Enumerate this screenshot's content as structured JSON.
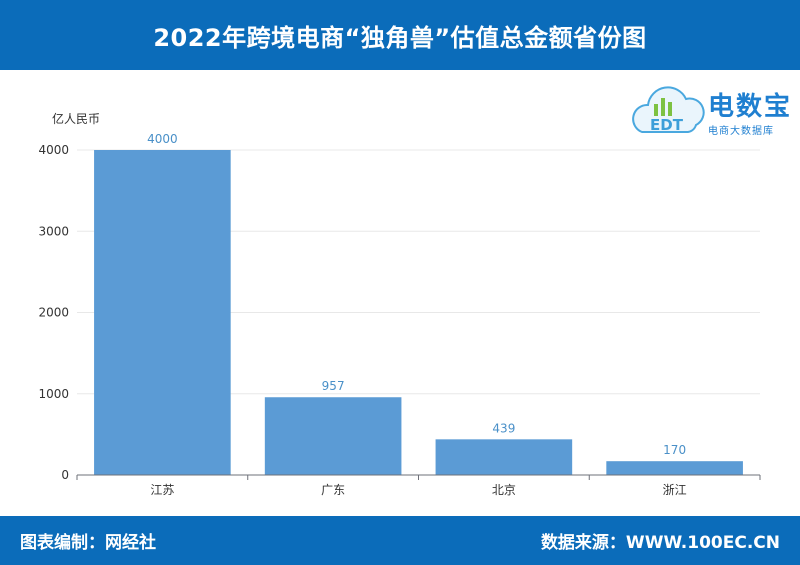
{
  "header": {
    "title": "2022年跨境电商“独角兽”估值总金额省份图"
  },
  "footer": {
    "left": "图表编制：网经社",
    "right": "数据来源：WWW.100EC.CN"
  },
  "logo": {
    "brand": "电数宝",
    "sub": "电商大数据库",
    "mark": "EDT",
    "accent": "#1f7fd0"
  },
  "chart_data": {
    "type": "bar",
    "title": "2022年跨境电商“独角兽”估值总金额省份图",
    "ylabel": "亿人民币",
    "xlabel": "",
    "categories": [
      "江苏",
      "广东",
      "北京",
      "浙江"
    ],
    "values": [
      4000,
      957,
      439,
      170
    ],
    "ylim": [
      0,
      4000
    ],
    "yticks": [
      0,
      1000,
      2000,
      3000,
      4000
    ],
    "grid": true,
    "bar_color": "#5b9bd5",
    "label_color": "#4a90c8"
  }
}
